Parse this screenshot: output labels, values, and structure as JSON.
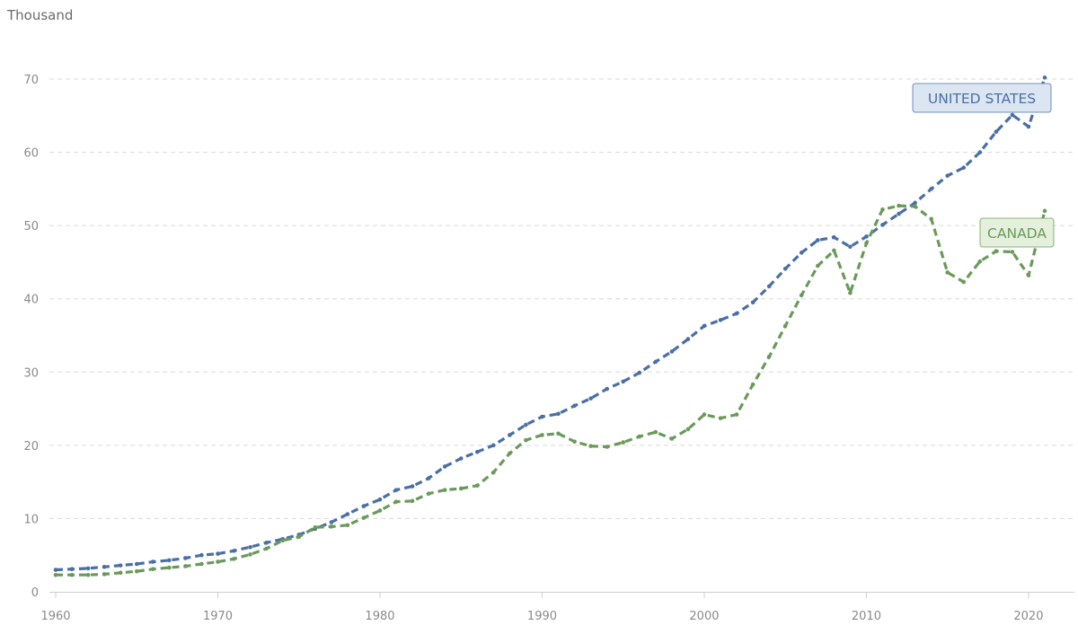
{
  "chart_data": {
    "type": "line",
    "ylabel": "Thousand",
    "ylim": [
      0,
      70
    ],
    "xlim": [
      1960,
      2021
    ],
    "yticks": [
      0,
      10,
      20,
      30,
      40,
      50,
      60,
      70
    ],
    "xticks": [
      1960,
      1970,
      1980,
      1990,
      2000,
      2010,
      2020
    ],
    "grid": "horizontal dashed",
    "x": [
      1960,
      1961,
      1962,
      1963,
      1964,
      1965,
      1966,
      1967,
      1968,
      1969,
      1970,
      1971,
      1972,
      1973,
      1974,
      1975,
      1976,
      1977,
      1978,
      1979,
      1980,
      1981,
      1982,
      1983,
      1984,
      1985,
      1986,
      1987,
      1988,
      1989,
      1990,
      1991,
      1992,
      1993,
      1994,
      1995,
      1996,
      1997,
      1998,
      1999,
      2000,
      2001,
      2002,
      2003,
      2004,
      2005,
      2006,
      2007,
      2008,
      2009,
      2010,
      2011,
      2012,
      2013,
      2014,
      2015,
      2016,
      2017,
      2018,
      2019,
      2020,
      2021
    ],
    "series": [
      {
        "name": "UNITED STATES",
        "color": "#4a6fa5",
        "label_bg": "#dce6f2",
        "values": [
          3.0,
          3.1,
          3.2,
          3.4,
          3.6,
          3.8,
          4.1,
          4.3,
          4.6,
          5.0,
          5.2,
          5.6,
          6.1,
          6.7,
          7.2,
          7.8,
          8.6,
          9.5,
          10.6,
          11.7,
          12.6,
          13.9,
          14.4,
          15.5,
          17.1,
          18.2,
          19.1,
          20.0,
          21.4,
          22.8,
          23.9,
          24.3,
          25.4,
          26.4,
          27.7,
          28.7,
          29.9,
          31.4,
          32.8,
          34.5,
          36.3,
          37.1,
          38.0,
          39.5,
          41.7,
          44.1,
          46.3,
          48.0,
          48.4,
          47.1,
          48.5,
          50.1,
          51.6,
          53.1,
          55.0,
          56.8,
          57.9,
          60.0,
          62.8,
          65.1,
          63.5,
          70.2
        ]
      },
      {
        "name": "CANADA",
        "color": "#6a9a5a",
        "label_bg": "#e4efdc",
        "values": [
          2.3,
          2.3,
          2.3,
          2.4,
          2.6,
          2.8,
          3.1,
          3.3,
          3.5,
          3.8,
          4.1,
          4.5,
          5.1,
          5.9,
          7.0,
          7.5,
          8.8,
          8.9,
          9.1,
          10.1,
          11.1,
          12.3,
          12.4,
          13.4,
          13.9,
          14.1,
          14.5,
          16.3,
          18.9,
          20.7,
          21.4,
          21.6,
          20.5,
          19.9,
          19.8,
          20.4,
          21.2,
          21.8,
          20.9,
          22.2,
          24.2,
          23.7,
          24.2,
          28.3,
          32.1,
          36.3,
          40.5,
          44.5,
          46.6,
          40.8,
          47.6,
          52.2,
          52.7,
          52.6,
          50.9,
          43.6,
          42.3,
          45.1,
          46.5,
          46.4,
          43.2,
          52.0
        ]
      }
    ]
  }
}
